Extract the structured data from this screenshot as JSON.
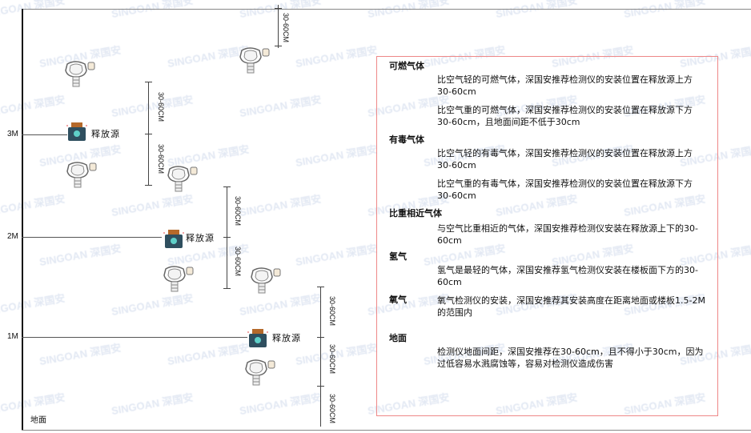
{
  "levels": {
    "l3": "3M",
    "l2": "2M",
    "l1": "1M",
    "ground": "地面"
  },
  "source_label": "释放源",
  "dimension_label": "30-60CM",
  "watermark": "SINGOAN 深国安",
  "legend": {
    "combustible": {
      "title": "可燃气体",
      "p1": "比空气轻的可燃气体，深国安推荐检测仪的安装位置在释放源上方30-60cm",
      "p2": "比空气重的可燃气体，深国安推荐检测仪的安装位置在释放源下方30-60cm，且地面间距不低于30cm"
    },
    "toxic": {
      "title": "有毒气体",
      "p1": "比空气轻的有毒气体，深国安推荐检测仪的安装位置在释放源上方30-60cm",
      "p2": "比空气重的有毒气体，深国安推荐检测仪的安装位置在释放源下方30-60cm"
    },
    "similar": {
      "title": "比重相近气体",
      "p1": "与空气比重相近的气体，深国安推荐检测仪安装在释放源上下的30-60cm"
    },
    "hydrogen": {
      "title": "氢气",
      "p1": "氢气是最轻的气体，深国安推荐氢气检测仪安装在楼板面下方的30-60cm"
    },
    "oxygen": {
      "title": "氧气",
      "p1": "氧气检测仪的安装，深国安推荐其安装高度在距离地面或楼板1.5-2M的范围内"
    },
    "ground": {
      "title": "地面",
      "p1": "检测仪地面间距，深国安推荐在30-60cm，且不得小于30cm，因为过低容易水溅腐蚀等，容易对检测仪造成伤害"
    }
  },
  "colors": {
    "box_border": "#ee8888",
    "source_body": "#2f4f5f",
    "source_cap": "#b5692a",
    "source_glyph": "#5fd0c8"
  }
}
